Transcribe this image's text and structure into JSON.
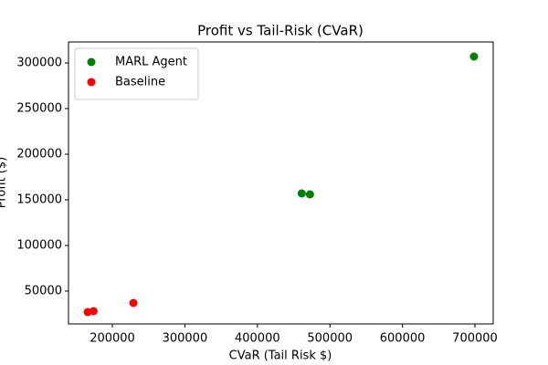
{
  "chart_data": {
    "type": "scatter",
    "title": "Profit vs Tail-Risk (CVaR)",
    "x_label": "CVaR (Tail Risk $)",
    "y_label": "Profit ($)",
    "series": [
      {
        "name": "MARL Agent",
        "color": "#008000",
        "x": [
          698700,
          461200,
          472500
        ],
        "values": [
          307000,
          157000,
          156000
        ]
      },
      {
        "name": "Baseline",
        "color": "#ff0000",
        "x": [
          166000,
          174000,
          229000
        ],
        "values": [
          27000,
          28000,
          37000
        ]
      }
    ],
    "xlim": [
      139500,
      725200
    ],
    "xticks": [
      200000,
      300000,
      400000,
      500000,
      600000,
      700000
    ],
    "ylim": [
      14000,
      323000
    ],
    "yticks": [
      50000,
      100000,
      150000,
      200000,
      250000,
      300000
    ],
    "legend": "upper left"
  }
}
